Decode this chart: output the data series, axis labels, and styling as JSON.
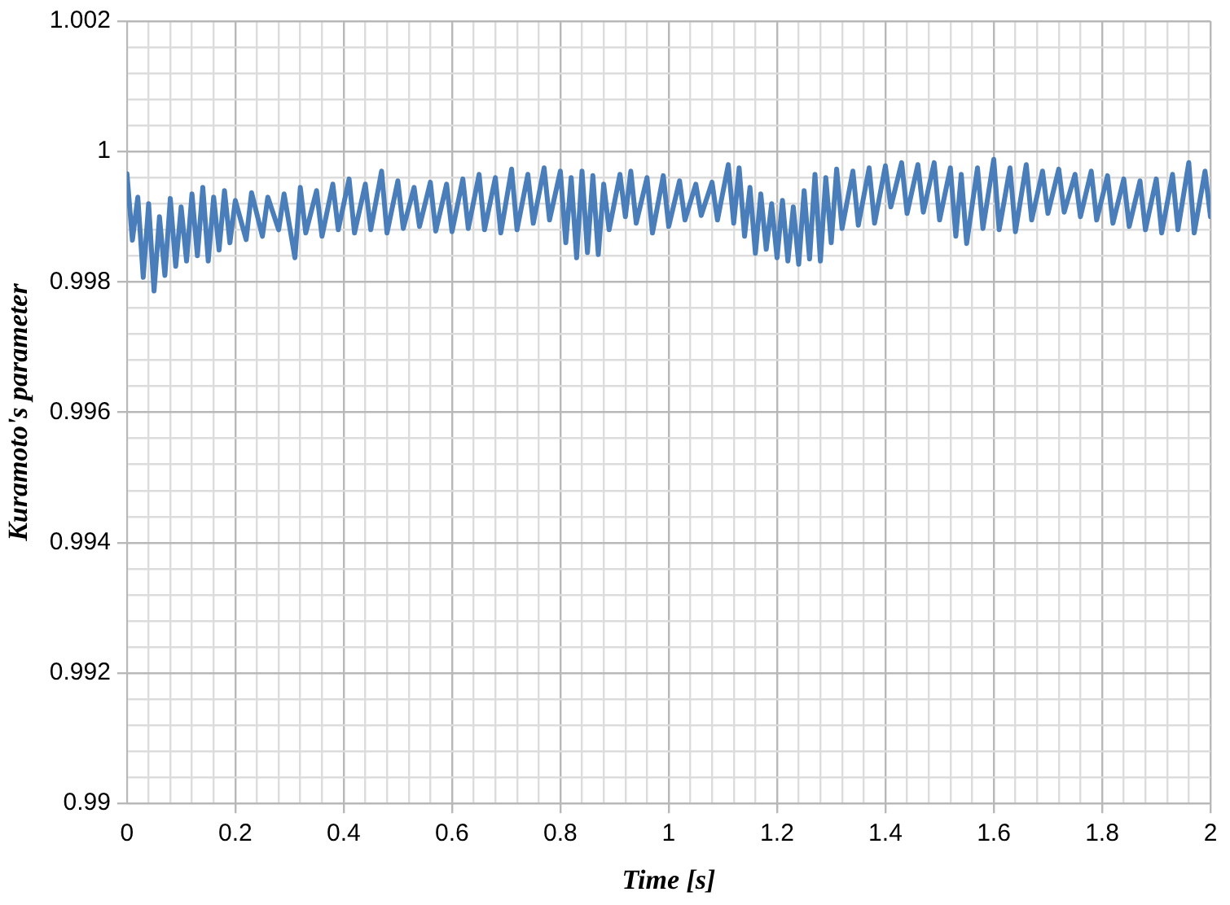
{
  "chart_data": {
    "type": "line",
    "xlabel": "Time [s]",
    "ylabel": "Kuramoto's parameter",
    "xlim": [
      0,
      2
    ],
    "ylim": [
      0.99,
      1.002
    ],
    "xticks": [
      0,
      {
        "value": 0.04,
        "label": null
      },
      {
        "value": 0.08,
        "label": null
      },
      {
        "value": 0.12,
        "label": null
      },
      {
        "value": 0.16,
        "label": null
      },
      0.2,
      {
        "value": 0.24,
        "label": null
      },
      {
        "value": 0.28,
        "label": null
      },
      {
        "value": 0.32,
        "label": null
      },
      {
        "value": 0.36,
        "label": null
      },
      0.4,
      {
        "value": 0.44,
        "label": null
      },
      {
        "value": 0.48,
        "label": null
      },
      {
        "value": 0.52,
        "label": null
      },
      {
        "value": 0.56,
        "label": null
      },
      0.6,
      {
        "value": 0.64,
        "label": null
      },
      {
        "value": 0.68,
        "label": null
      },
      {
        "value": 0.72,
        "label": null
      },
      {
        "value": 0.76,
        "label": null
      },
      0.8,
      {
        "value": 0.84,
        "label": null
      },
      {
        "value": 0.88,
        "label": null
      },
      {
        "value": 0.92,
        "label": null
      },
      {
        "value": 0.96,
        "label": null
      },
      1,
      {
        "value": 1.04,
        "label": null
      },
      {
        "value": 1.08,
        "label": null
      },
      {
        "value": 1.12,
        "label": null
      },
      {
        "value": 1.16,
        "label": null
      },
      1.2,
      {
        "value": 1.24,
        "label": null
      },
      {
        "value": 1.28,
        "label": null
      },
      {
        "value": 1.32,
        "label": null
      },
      {
        "value": 1.36,
        "label": null
      },
      1.4,
      {
        "value": 1.44,
        "label": null
      },
      {
        "value": 1.48,
        "label": null
      },
      {
        "value": 1.52,
        "label": null
      },
      {
        "value": 1.56,
        "label": null
      },
      1.6,
      {
        "value": 1.64,
        "label": null
      },
      {
        "value": 1.68,
        "label": null
      },
      {
        "value": 1.72,
        "label": null
      },
      {
        "value": 1.76,
        "label": null
      },
      1.8,
      {
        "value": 1.84,
        "label": null
      },
      {
        "value": 1.88,
        "label": null
      },
      {
        "value": 1.92,
        "label": null
      },
      {
        "value": 1.96,
        "label": null
      },
      2
    ],
    "yticks": [
      0.99,
      {
        "value": 0.9904,
        "label": null
      },
      {
        "value": 0.9908,
        "label": null
      },
      {
        "value": 0.9912,
        "label": null
      },
      {
        "value": 0.9916,
        "label": null
      },
      0.992,
      {
        "value": 0.9924,
        "label": null
      },
      {
        "value": 0.9928,
        "label": null
      },
      {
        "value": 0.9932,
        "label": null
      },
      {
        "value": 0.9936,
        "label": null
      },
      0.994,
      {
        "value": 0.9944,
        "label": null
      },
      {
        "value": 0.9948,
        "label": null
      },
      {
        "value": 0.9952,
        "label": null
      },
      {
        "value": 0.9956,
        "label": null
      },
      0.996,
      {
        "value": 0.9964,
        "label": null
      },
      {
        "value": 0.9968,
        "label": null
      },
      {
        "value": 0.9972,
        "label": null
      },
      {
        "value": 0.9976,
        "label": null
      },
      0.998,
      {
        "value": 0.9984,
        "label": null
      },
      {
        "value": 0.9988,
        "label": null
      },
      {
        "value": 0.9992,
        "label": null
      },
      {
        "value": 0.9996,
        "label": null
      },
      1,
      {
        "value": 1.0004,
        "label": null
      },
      {
        "value": 1.0008,
        "label": null
      },
      {
        "value": 1.0012,
        "label": null
      },
      {
        "value": 1.0016,
        "label": null
      },
      1.002
    ],
    "grid": true,
    "legend": false,
    "marker": "none",
    "line_style": "solid",
    "series": [
      {
        "color": "#4a7ebb",
        "x": [
          0,
          0.01,
          0.02,
          0.03,
          0.04,
          0.05,
          0.06,
          0.07,
          0.08,
          0.09,
          0.1,
          0.11,
          0.12,
          0.13,
          0.14,
          0.15,
          0.16,
          0.17,
          0.18,
          0.19,
          0.2,
          0.22,
          0.23,
          0.25,
          0.26,
          0.28,
          0.29,
          0.31,
          0.32,
          0.33,
          0.35,
          0.36,
          0.38,
          0.39,
          0.41,
          0.42,
          0.44,
          0.45,
          0.47,
          0.48,
          0.5,
          0.51,
          0.53,
          0.54,
          0.56,
          0.57,
          0.59,
          0.6,
          0.62,
          0.63,
          0.65,
          0.66,
          0.68,
          0.69,
          0.71,
          0.72,
          0.74,
          0.75,
          0.77,
          0.78,
          0.8,
          0.81,
          0.82,
          0.83,
          0.84,
          0.85,
          0.86,
          0.87,
          0.88,
          0.89,
          0.91,
          0.92,
          0.93,
          0.94,
          0.96,
          0.97,
          0.99,
          1,
          1.02,
          1.03,
          1.05,
          1.06,
          1.08,
          1.09,
          1.11,
          1.12,
          1.13,
          1.14,
          1.15,
          1.16,
          1.17,
          1.18,
          1.19,
          1.2,
          1.21,
          1.22,
          1.23,
          1.24,
          1.25,
          1.26,
          1.27,
          1.28,
          1.29,
          1.3,
          1.31,
          1.32,
          1.34,
          1.35,
          1.37,
          1.38,
          1.4,
          1.41,
          1.43,
          1.44,
          1.46,
          1.47,
          1.49,
          1.5,
          1.52,
          1.53,
          1.54,
          1.55,
          1.57,
          1.58,
          1.6,
          1.61,
          1.63,
          1.64,
          1.66,
          1.67,
          1.69,
          1.7,
          1.72,
          1.73,
          1.75,
          1.76,
          1.78,
          1.79,
          1.81,
          1.82,
          1.84,
          1.85,
          1.87,
          1.88,
          1.9,
          1.91,
          1.93,
          1.94,
          1.96,
          1.97,
          1.99,
          2
        ],
        "values": [
          0.99966,
          0.99864,
          0.9993,
          0.99807,
          0.9992,
          0.99786,
          0.999,
          0.9981,
          0.99928,
          0.99824,
          0.99915,
          0.99832,
          0.99935,
          0.9984,
          0.99945,
          0.99832,
          0.9993,
          0.99849,
          0.9994,
          0.9986,
          0.99925,
          0.99865,
          0.99937,
          0.9987,
          0.9993,
          0.9988,
          0.99935,
          0.99837,
          0.99945,
          0.99875,
          0.9994,
          0.9987,
          0.9995,
          0.9988,
          0.99958,
          0.99875,
          0.9995,
          0.9988,
          0.9997,
          0.99875,
          0.99955,
          0.99882,
          0.99945,
          0.99885,
          0.99953,
          0.99878,
          0.9995,
          0.99877,
          0.99958,
          0.99882,
          0.99965,
          0.9988,
          0.9996,
          0.99875,
          0.99973,
          0.9988,
          0.99965,
          0.9989,
          0.99975,
          0.99895,
          0.9997,
          0.9986,
          0.9996,
          0.99837,
          0.9997,
          0.99845,
          0.99963,
          0.99842,
          0.9995,
          0.9988,
          0.99965,
          0.999,
          0.9997,
          0.9989,
          0.9996,
          0.99875,
          0.99963,
          0.99885,
          0.99955,
          0.99895,
          0.9995,
          0.99902,
          0.99953,
          0.99895,
          0.9998,
          0.9989,
          0.99975,
          0.9987,
          0.99945,
          0.99844,
          0.99935,
          0.9985,
          0.9992,
          0.99837,
          0.99925,
          0.99832,
          0.99915,
          0.99827,
          0.9994,
          0.99835,
          0.99965,
          0.99832,
          0.9996,
          0.9986,
          0.99973,
          0.99882,
          0.9997,
          0.99887,
          0.99975,
          0.9989,
          0.99978,
          0.99915,
          0.99983,
          0.99905,
          0.9998,
          0.99907,
          0.99983,
          0.99895,
          0.99975,
          0.9987,
          0.99965,
          0.99859,
          0.99975,
          0.99882,
          0.99988,
          0.9988,
          0.99975,
          0.99877,
          0.9998,
          0.99895,
          0.9997,
          0.99905,
          0.99973,
          0.99907,
          0.99965,
          0.999,
          0.9997,
          0.99895,
          0.99963,
          0.9989,
          0.99958,
          0.99885,
          0.99955,
          0.9988,
          0.99958,
          0.99875,
          0.99965,
          0.9988,
          0.99983,
          0.99875,
          0.9997,
          0.999
        ]
      }
    ]
  }
}
